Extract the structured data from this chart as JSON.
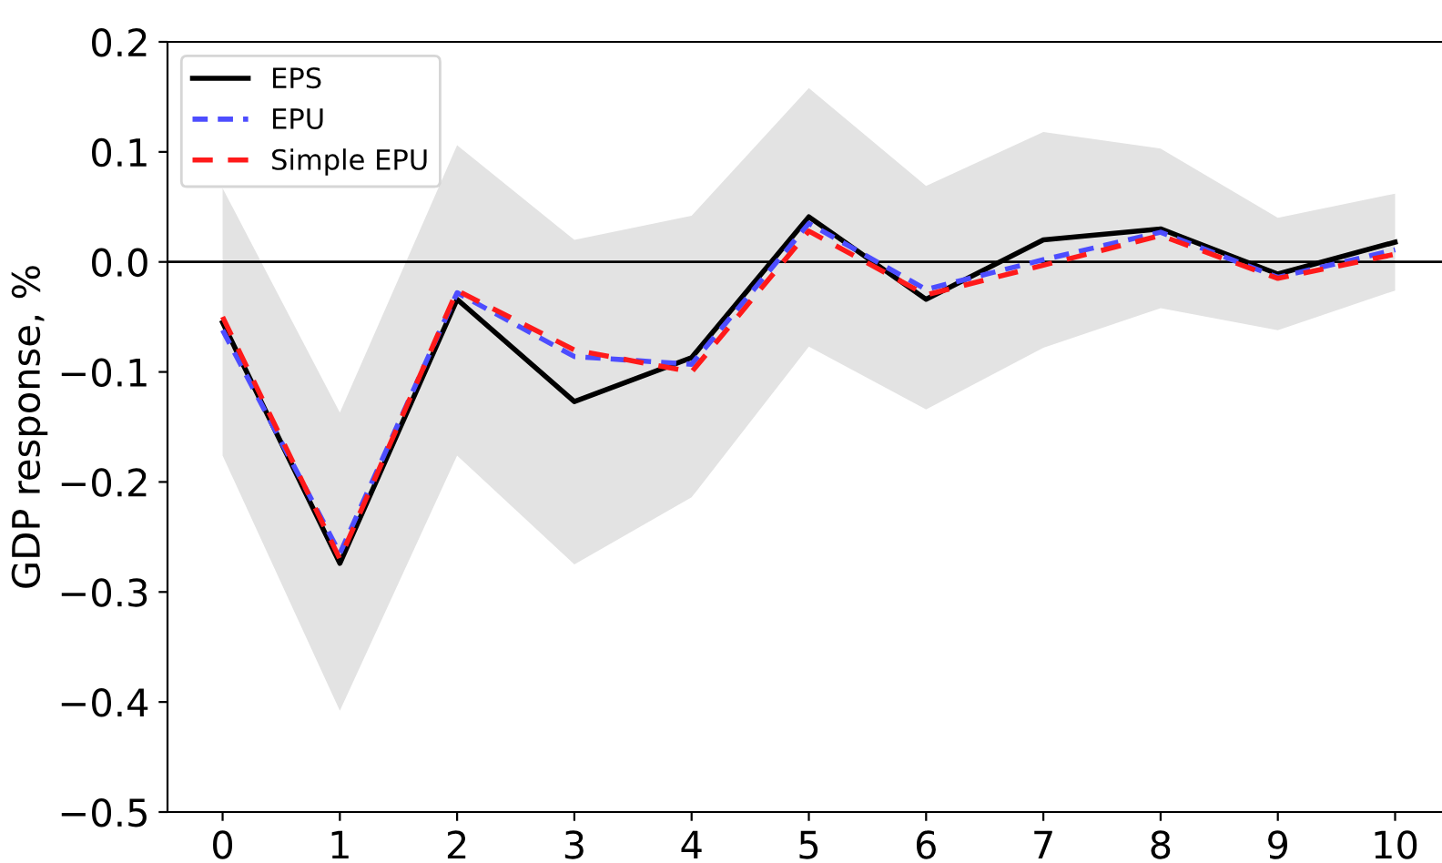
{
  "chart_data": {
    "type": "line",
    "ylabel": "GDP response, %",
    "x": [
      0,
      1,
      2,
      3,
      4,
      5,
      6,
      7,
      8,
      9,
      10
    ],
    "series": [
      {
        "name": "EPS",
        "color": "#000000",
        "line_style": "solid",
        "values": [
          -0.055,
          -0.274,
          -0.034,
          -0.127,
          -0.087,
          0.041,
          -0.034,
          0.02,
          0.03,
          -0.011,
          0.018
        ],
        "lower": [
          -0.176,
          -0.408,
          -0.176,
          -0.275,
          -0.214,
          -0.077,
          -0.134,
          -0.078,
          -0.042,
          -0.062,
          -0.026
        ],
        "upper": [
          0.067,
          -0.137,
          0.106,
          0.02,
          0.042,
          0.158,
          0.069,
          0.118,
          0.103,
          0.04,
          0.062
        ]
      },
      {
        "name": "EPU",
        "color": "#4d4dff",
        "line_style": "dashed",
        "values": [
          -0.062,
          -0.265,
          -0.028,
          -0.086,
          -0.093,
          0.035,
          -0.025,
          0.002,
          0.027,
          -0.014,
          0.011
        ]
      },
      {
        "name": "Simple EPU",
        "color": "#ff1a1a",
        "line_style": "dashed",
        "values": [
          -0.05,
          -0.27,
          -0.026,
          -0.08,
          -0.1,
          0.028,
          -0.03,
          -0.003,
          0.024,
          -0.015,
          0.007
        ]
      }
    ],
    "xlim": [
      -0.47,
      10.4
    ],
    "xticks": [
      0,
      1,
      2,
      3,
      4,
      5,
      6,
      7,
      8,
      9,
      10
    ],
    "ylim": [
      -0.5,
      0.2
    ],
    "yticks": [
      {
        "value": -0.5,
        "label": "−0.5"
      },
      {
        "value": -0.4,
        "label": "−0.4"
      },
      {
        "value": -0.3,
        "label": "−0.3"
      },
      {
        "value": -0.2,
        "label": "−0.2"
      },
      {
        "value": -0.1,
        "label": "−0.1"
      },
      {
        "value": 0.0,
        "label": "0.0"
      },
      {
        "value": 0.1,
        "label": "0.1"
      },
      {
        "value": 0.2,
        "label": "0.2"
      }
    ],
    "ref_lines": [
      {
        "axis": "y",
        "value": 0,
        "color": "#000000",
        "line_style": "solid"
      }
    ],
    "grid": false,
    "legend": "top left"
  }
}
